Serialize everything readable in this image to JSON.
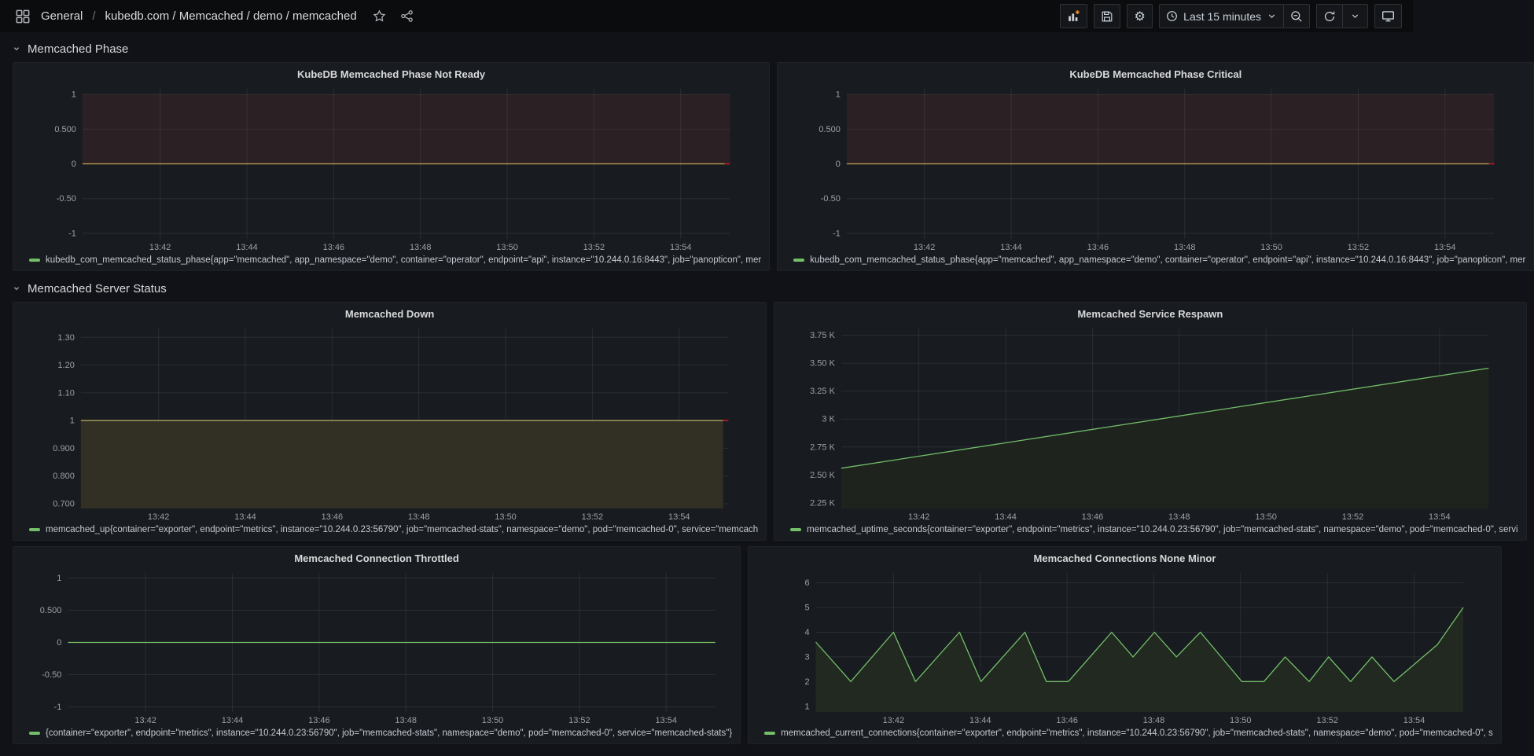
{
  "nav": {
    "breadcrumb": [
      {
        "label": "General"
      },
      {
        "label": "kubedb.com / Memcached / demo / memcached"
      }
    ],
    "separator": "/",
    "time_range": "Last 15 minutes"
  },
  "rows": [
    {
      "title": "Memcached Phase"
    },
    {
      "title": "Memcached Server Status"
    }
  ],
  "colors": {
    "green": "#73BF69",
    "yellow": "#C9A658",
    "olive": "#BCB062",
    "red": "#C4162A",
    "maroon_region": "#2B2023",
    "olive_fill": "#322F25",
    "green_fill_dark": "#1E231E",
    "green_fill": "#222920",
    "accent_orange": "#F58E1C"
  },
  "panels": [
    {
      "title": "KubeDB Memcached Phase Not Ready",
      "legend": "kubedb_com_memcached_status_phase{app=\"memcached\", app_namespace=\"demo\", container=\"operator\", endpoint=\"api\", instance=\"10.244.0.16:8443\", job=\"panopticon\", mer",
      "chart_data": {
        "type": "line",
        "y_min": -1.08,
        "y_max": 1.08,
        "y_ticks": [
          [
            "1",
            1
          ],
          [
            "0.500",
            0.5
          ],
          [
            "0",
            0
          ],
          [
            "-0.50",
            -0.5
          ],
          [
            "-1",
            -1
          ]
        ],
        "x_ticks": [
          "13:42",
          "13:44",
          "13:46",
          "13:48",
          "13:50",
          "13:52",
          "13:54"
        ],
        "x_start": 0.12,
        "x_step": 0.134,
        "region": {
          "from": 0,
          "to": 1,
          "color": "#2B2023"
        },
        "series": [
          {
            "color": "#C9A658",
            "width": 1.3,
            "points": [
              [
                0,
                0
              ],
              [
                0.992,
                0
              ]
            ]
          },
          {
            "color": "#C4162A",
            "width": 1.6,
            "points": [
              [
                0.992,
                0
              ],
              [
                1,
                0
              ]
            ]
          }
        ]
      }
    },
    {
      "title": "KubeDB Memcached Phase Critical",
      "legend": "kubedb_com_memcached_status_phase{app=\"memcached\", app_namespace=\"demo\", container=\"operator\", endpoint=\"api\", instance=\"10.244.0.16:8443\", job=\"panopticon\", mer",
      "chart_data": {
        "type": "line",
        "y_min": -1.08,
        "y_max": 1.08,
        "y_ticks": [
          [
            "1",
            1
          ],
          [
            "0.500",
            0.5
          ],
          [
            "0",
            0
          ],
          [
            "-0.50",
            -0.5
          ],
          [
            "-1",
            -1
          ]
        ],
        "x_ticks": [
          "13:42",
          "13:44",
          "13:46",
          "13:48",
          "13:50",
          "13:52",
          "13:54"
        ],
        "x_start": 0.12,
        "x_step": 0.134,
        "region": {
          "from": 0,
          "to": 1,
          "color": "#2B2023"
        },
        "series": [
          {
            "color": "#C9A658",
            "width": 1.3,
            "points": [
              [
                0,
                0
              ],
              [
                0.992,
                0
              ]
            ]
          },
          {
            "color": "#C4162A",
            "width": 1.6,
            "points": [
              [
                0.992,
                0
              ],
              [
                1,
                0
              ]
            ]
          }
        ]
      }
    },
    {
      "title": "Memcached Down",
      "legend": "memcached_up{container=\"exporter\", endpoint=\"metrics\", instance=\"10.244.0.23:56790\", job=\"memcached-stats\", namespace=\"demo\", pod=\"memcached-0\", service=\"memcach",
      "chart_data": {
        "type": "area",
        "y_min": 0.683,
        "y_max": 1.332,
        "y_ticks": [
          [
            "1.30",
            1.3
          ],
          [
            "1.20",
            1.2
          ],
          [
            "1.10",
            1.1
          ],
          [
            "1",
            1
          ],
          [
            "0.900",
            0.9
          ],
          [
            "0.800",
            0.8
          ],
          [
            "0.700",
            0.7
          ]
        ],
        "x_ticks": [
          "13:42",
          "13:44",
          "13:46",
          "13:48",
          "13:50",
          "13:52",
          "13:54"
        ],
        "x_start": 0.12,
        "x_step": 0.134,
        "series": [
          {
            "color": "#BCB062",
            "width": 1.3,
            "fill": "#322F25",
            "points": [
              [
                0,
                1
              ],
              [
                0.992,
                1
              ]
            ]
          },
          {
            "color": "#C4162A",
            "width": 1.6,
            "points": [
              [
                0.992,
                1
              ],
              [
                1,
                1
              ]
            ]
          }
        ]
      }
    },
    {
      "title": "Memcached Service Respawn",
      "legend": "memcached_uptime_seconds{container=\"exporter\", endpoint=\"metrics\", instance=\"10.244.0.23:56790\", job=\"memcached-stats\", namespace=\"demo\", pod=\"memcached-0\", servi",
      "chart_data": {
        "type": "area",
        "y_min": 2.2,
        "y_max": 3.81,
        "y_ticks": [
          [
            "3.75 K",
            3.75
          ],
          [
            "3.50 K",
            3.5
          ],
          [
            "3.25 K",
            3.25
          ],
          [
            "3 K",
            3
          ],
          [
            "2.75 K",
            2.75
          ],
          [
            "2.50 K",
            2.5
          ],
          [
            "2.25 K",
            2.25
          ]
        ],
        "x_ticks": [
          "13:42",
          "13:44",
          "13:46",
          "13:48",
          "13:50",
          "13:52",
          "13:54"
        ],
        "x_start": 0.12,
        "x_step": 0.134,
        "series": [
          {
            "color": "#73BF69",
            "width": 1.3,
            "fill": "#1E231E",
            "points": [
              [
                0,
                2.56
              ],
              [
                1,
                3.455
              ]
            ]
          }
        ]
      }
    },
    {
      "title": "Memcached Connection Throttled",
      "legend": "{container=\"exporter\", endpoint=\"metrics\", instance=\"10.244.0.23:56790\", job=\"memcached-stats\", namespace=\"demo\", pod=\"memcached-0\", service=\"memcached-stats\"}",
      "chart_data": {
        "type": "line",
        "y_min": -1.08,
        "y_max": 1.08,
        "y_ticks": [
          [
            "1",
            1
          ],
          [
            "0.500",
            0.5
          ],
          [
            "0",
            0
          ],
          [
            "-0.50",
            -0.5
          ],
          [
            "-1",
            -1
          ]
        ],
        "x_ticks": [
          "13:42",
          "13:44",
          "13:46",
          "13:48",
          "13:50",
          "13:52",
          "13:54"
        ],
        "x_start": 0.12,
        "x_step": 0.134,
        "series": [
          {
            "color": "#73BF69",
            "width": 1.3,
            "points": [
              [
                0,
                0
              ],
              [
                1,
                0
              ]
            ]
          }
        ]
      }
    },
    {
      "title": "Memcached Connections None Minor",
      "legend": "memcached_current_connections{container=\"exporter\", endpoint=\"metrics\", instance=\"10.244.0.23:56790\", job=\"memcached-stats\", namespace=\"demo\", pod=\"memcached-0\", s",
      "chart_data": {
        "type": "area",
        "y_min": 0.77,
        "y_max": 6.4,
        "y_ticks": [
          [
            "6",
            6
          ],
          [
            "5",
            5
          ],
          [
            "4",
            4
          ],
          [
            "3",
            3
          ],
          [
            "2",
            2
          ],
          [
            "1",
            1
          ]
        ],
        "x_ticks": [
          "13:42",
          "13:44",
          "13:46",
          "13:48",
          "13:50",
          "13:52",
          "13:54"
        ],
        "x_start": 0.12,
        "x_step": 0.134,
        "series": [
          {
            "color": "#73BF69",
            "width": 1.3,
            "fill": "#222920",
            "points": [
              [
                0,
                3.6
              ],
              [
                0.054,
                2
              ],
              [
                0.12,
                4
              ],
              [
                0.154,
                2
              ],
              [
                0.222,
                4
              ],
              [
                0.255,
                2
              ],
              [
                0.323,
                4
              ],
              [
                0.356,
                2
              ],
              [
                0.39,
                2
              ],
              [
                0.457,
                4
              ],
              [
                0.49,
                3
              ],
              [
                0.523,
                4
              ],
              [
                0.557,
                3
              ],
              [
                0.594,
                4
              ],
              [
                0.658,
                2
              ],
              [
                0.692,
                2
              ],
              [
                0.725,
                3
              ],
              [
                0.762,
                2
              ],
              [
                0.792,
                3
              ],
              [
                0.826,
                2
              ],
              [
                0.859,
                3
              ],
              [
                0.893,
                2
              ],
              [
                0.96,
                3.5
              ],
              [
                1,
                5
              ]
            ]
          }
        ]
      }
    }
  ]
}
